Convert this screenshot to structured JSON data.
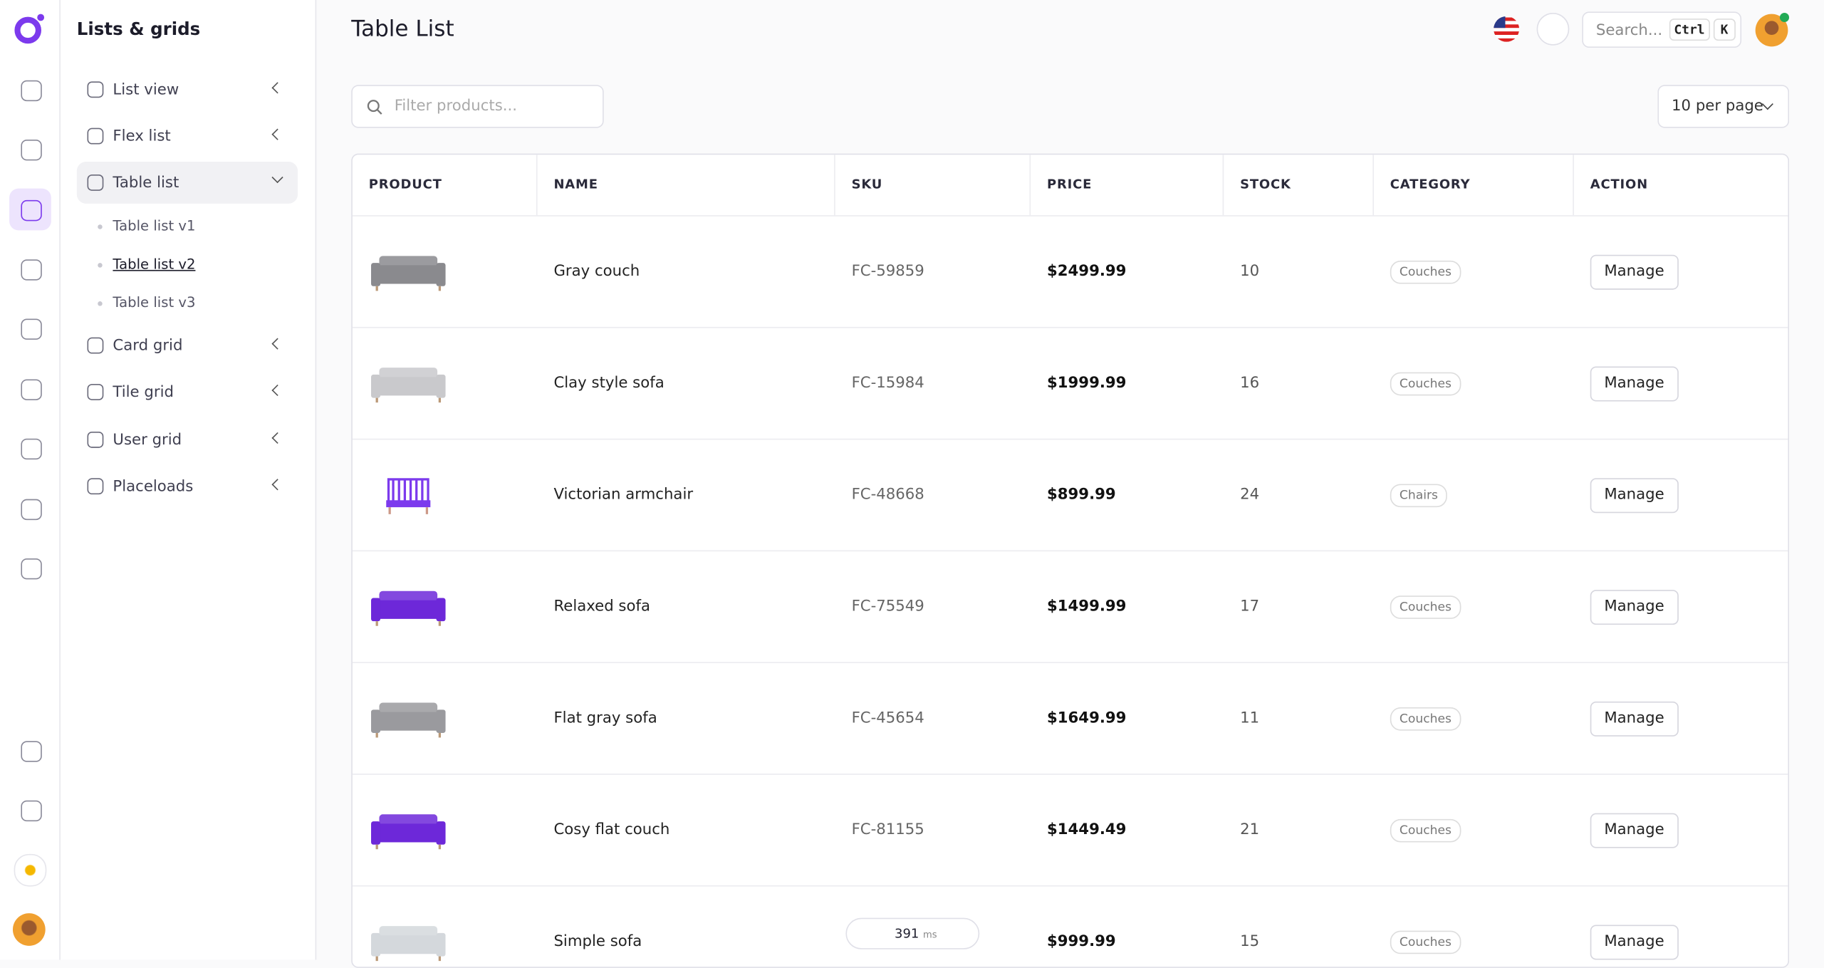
{
  "sidebar": {
    "title": "Lists & grids",
    "menu": [
      "List view",
      "Flex list",
      "Table list",
      "Card grid",
      "Tile grid",
      "User grid",
      "Placeloads"
    ],
    "submenu": [
      "Table list v1",
      "Table list v2",
      "Table list v3"
    ]
  },
  "header": {
    "title": "Table List",
    "search_placeholder": "Search...",
    "shortcut": [
      "Ctrl",
      "K"
    ]
  },
  "toolbar": {
    "filter_placeholder": "Filter products...",
    "per_page": "10 per page"
  },
  "table": {
    "columns": [
      "PRODUCT",
      "NAME",
      "SKU",
      "PRICE",
      "STOCK",
      "CATEGORY",
      "ACTION"
    ],
    "rows": [
      [
        "Gray couch",
        "FC-59859",
        "$2499.99",
        "10",
        "Couches",
        "Manage"
      ],
      [
        "Clay style sofa",
        "FC-15984",
        "$1999.99",
        "16",
        "Couches",
        "Manage"
      ],
      [
        "Victorian armchair",
        "FC-48668",
        "$899.99",
        "24",
        "Chairs",
        "Manage"
      ],
      [
        "Relaxed sofa",
        "FC-75549",
        "$1499.99",
        "17",
        "Couches",
        "Manage"
      ],
      [
        "Flat gray sofa",
        "FC-45654",
        "$1649.99",
        "11",
        "Couches",
        "Manage"
      ],
      [
        "Cosy flat couch",
        "FC-81155",
        "$1449.49",
        "21",
        "Couches",
        "Manage"
      ],
      [
        "Simple sofa",
        "",
        "$999.99",
        "15",
        "Couches",
        "Manage"
      ]
    ]
  },
  "timer": {
    "value": "391",
    "unit": "ms"
  }
}
